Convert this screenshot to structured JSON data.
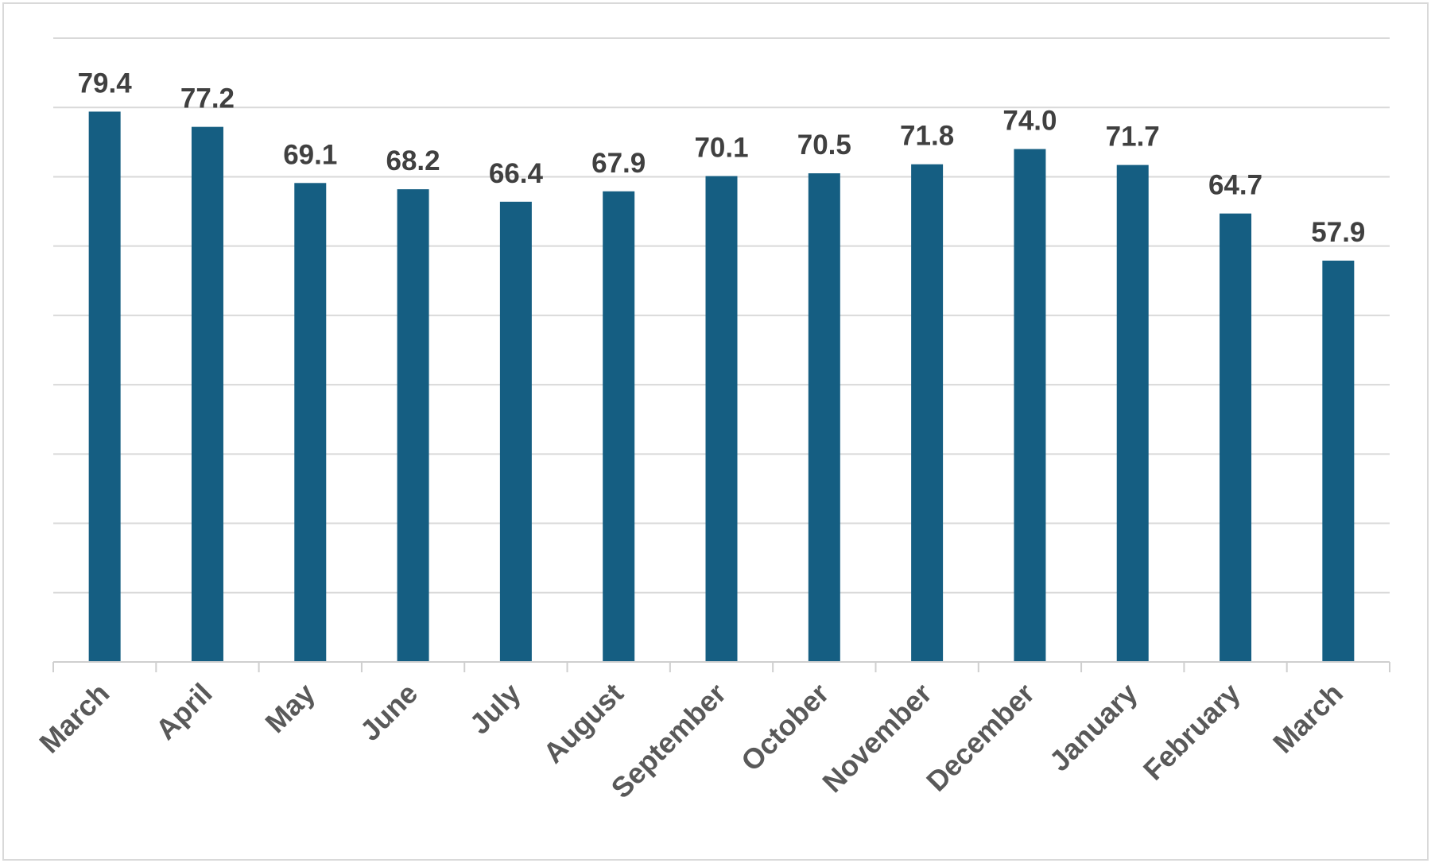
{
  "chart_data": {
    "type": "bar",
    "categories": [
      "March",
      "April",
      "May",
      "June",
      "July",
      "August",
      "September",
      "October",
      "November",
      "December",
      "January",
      "February",
      "March"
    ],
    "values": [
      79.4,
      77.2,
      69.1,
      68.2,
      66.4,
      67.9,
      70.1,
      70.5,
      71.8,
      74.0,
      71.7,
      64.7,
      57.9
    ],
    "data_labels": [
      "79.4",
      "77.2",
      "69.1",
      "68.2",
      "66.4",
      "67.9",
      "70.1",
      "70.5",
      "71.8",
      "74.0",
      "71.7",
      "64.7",
      "57.9"
    ],
    "title": "",
    "xlabel": "",
    "ylabel": "",
    "ylim": [
      0,
      90
    ],
    "y_grid_step": 10,
    "grid": true,
    "legend": "none",
    "bar_color": "#155e82",
    "y_tick_labels_visible": false
  }
}
